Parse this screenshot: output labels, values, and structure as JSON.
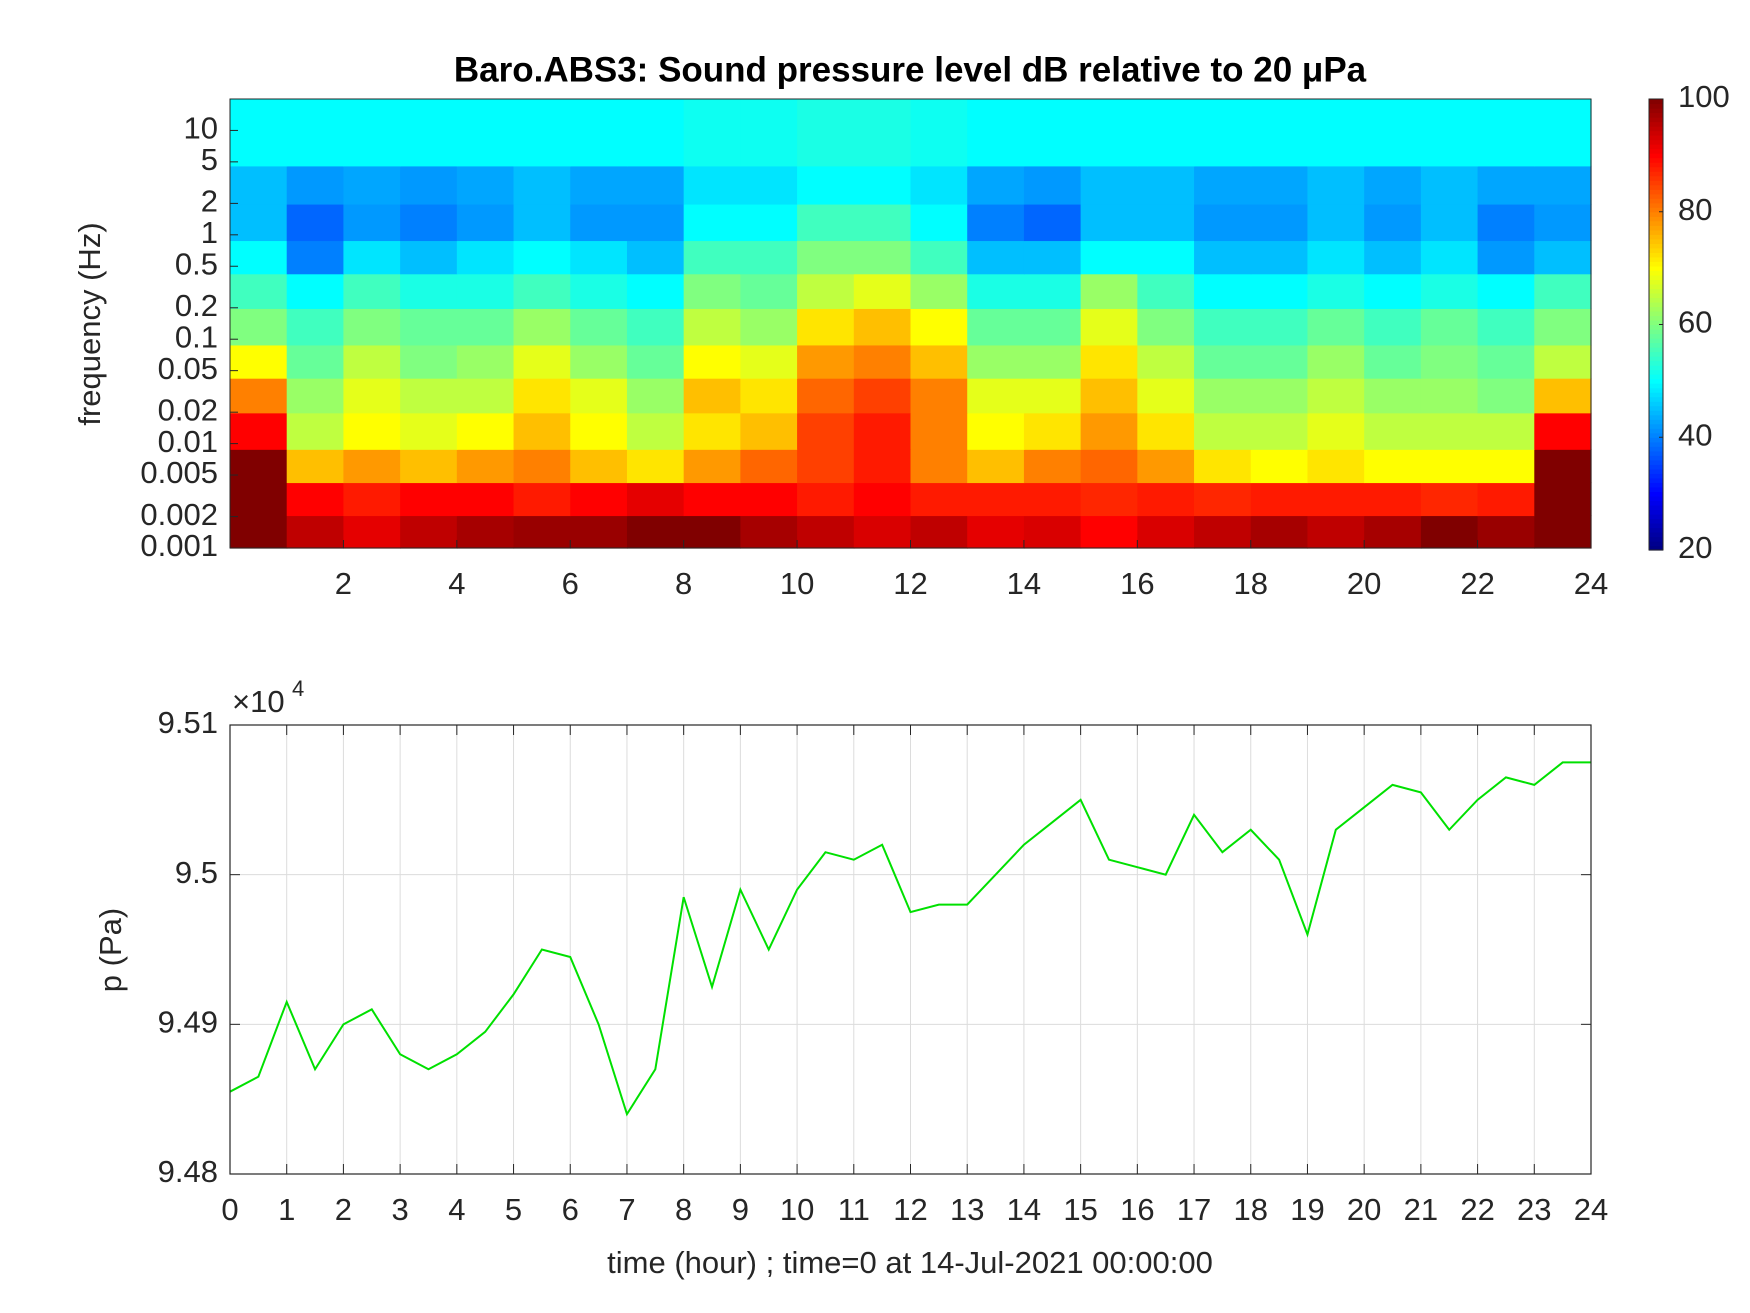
{
  "chart_data": [
    {
      "type": "heatmap",
      "title": "Baro.ABS3: Sound pressure level dB relative to 20 μPa",
      "ylabel": "frequency (Hz)",
      "colormap": "jet",
      "log_y": true,
      "xlim": [
        0,
        24
      ],
      "xticks": [
        2,
        4,
        6,
        8,
        10,
        12,
        14,
        16,
        18,
        20,
        22,
        24
      ],
      "ylim": [
        0.001,
        20
      ],
      "yticks": [
        0.001,
        0.002,
        0.005,
        0.01,
        0.02,
        0.05,
        0.1,
        0.2,
        0.5,
        1,
        2,
        5,
        10
      ],
      "clim": [
        20,
        100
      ],
      "cticks": [
        20,
        40,
        60,
        80,
        100
      ],
      "x": [
        0.5,
        1.5,
        2.5,
        3.5,
        4.5,
        5.5,
        6.5,
        7.5,
        8.5,
        9.5,
        10.5,
        11.5,
        12.5,
        13.5,
        14.5,
        15.5,
        16.5,
        17.5,
        18.5,
        19.5,
        20.5,
        21.5,
        22.5,
        23.5
      ],
      "y": [
        0.0014,
        0.003,
        0.006,
        0.013,
        0.03,
        0.06,
        0.13,
        0.3,
        0.6,
        1.3,
        3,
        7
      ],
      "z": [
        [
          100,
          95,
          92,
          95,
          97,
          98,
          98,
          100,
          100,
          97,
          95,
          93,
          95,
          92,
          93,
          90,
          93,
          95,
          97,
          95,
          97,
          100,
          98,
          100
        ],
        [
          100,
          90,
          88,
          90,
          90,
          88,
          90,
          92,
          90,
          90,
          88,
          90,
          88,
          88,
          88,
          87,
          88,
          87,
          88,
          88,
          88,
          87,
          88,
          100
        ],
        [
          100,
          75,
          78,
          75,
          78,
          80,
          75,
          72,
          78,
          82,
          85,
          88,
          80,
          75,
          80,
          82,
          78,
          72,
          70,
          72,
          70,
          70,
          70,
          100
        ],
        [
          90,
          65,
          70,
          68,
          70,
          75,
          70,
          65,
          72,
          75,
          85,
          88,
          80,
          70,
          72,
          78,
          72,
          65,
          65,
          68,
          65,
          65,
          65,
          90
        ],
        [
          80,
          62,
          68,
          65,
          65,
          72,
          68,
          62,
          75,
          72,
          82,
          85,
          80,
          68,
          68,
          75,
          68,
          62,
          62,
          65,
          62,
          62,
          60,
          75
        ],
        [
          70,
          58,
          65,
          60,
          62,
          68,
          62,
          58,
          70,
          68,
          78,
          80,
          75,
          62,
          62,
          72,
          65,
          58,
          58,
          62,
          58,
          60,
          58,
          65
        ],
        [
          60,
          55,
          60,
          58,
          58,
          62,
          58,
          55,
          65,
          62,
          72,
          75,
          70,
          58,
          58,
          68,
          60,
          55,
          55,
          58,
          55,
          58,
          55,
          60
        ],
        [
          55,
          50,
          55,
          52,
          52,
          55,
          52,
          50,
          60,
          58,
          65,
          68,
          62,
          52,
          52,
          62,
          55,
          50,
          50,
          52,
          50,
          52,
          50,
          55
        ],
        [
          50,
          40,
          48,
          45,
          48,
          50,
          48,
          45,
          55,
          55,
          60,
          60,
          55,
          45,
          45,
          50,
          50,
          45,
          45,
          48,
          45,
          48,
          42,
          45
        ],
        [
          45,
          38,
          42,
          40,
          42,
          45,
          42,
          42,
          50,
          50,
          55,
          55,
          50,
          40,
          38,
          45,
          45,
          42,
          42,
          45,
          42,
          45,
          40,
          42
        ],
        [
          45,
          42,
          43,
          42,
          43,
          45,
          43,
          43,
          48,
          48,
          50,
          50,
          48,
          43,
          42,
          45,
          45,
          43,
          43,
          45,
          43,
          45,
          43,
          43
        ],
        [
          50,
          50,
          50,
          50,
          50,
          50,
          50,
          50,
          51,
          51,
          52,
          52,
          51,
          50,
          50,
          50,
          50,
          50,
          50,
          50,
          50,
          50,
          50,
          50
        ]
      ]
    },
    {
      "type": "line",
      "xlabel": "time (hour) ; time=0 at 14-Jul-2021 00:00:00",
      "ylabel": "p (Pa)",
      "y_multiplier": "×10",
      "y_multiplier_exponent": "4",
      "grid": true,
      "color": "#00e000",
      "xlim": [
        0,
        24
      ],
      "xticks": [
        0,
        1,
        2,
        3,
        4,
        5,
        6,
        7,
        8,
        9,
        10,
        11,
        12,
        13,
        14,
        15,
        16,
        17,
        18,
        19,
        20,
        21,
        22,
        23,
        24
      ],
      "ylim": [
        94800,
        95100
      ],
      "yticks": [
        {
          "value": 94800,
          "label": "9.48"
        },
        {
          "value": 94900,
          "label": "9.49"
        },
        {
          "value": 95000,
          "label": "9.5"
        },
        {
          "value": 95100,
          "label": "9.51"
        }
      ],
      "x": [
        0,
        0.5,
        1,
        1.5,
        2,
        2.5,
        3,
        3.5,
        4,
        4.5,
        5,
        5.5,
        6,
        6.5,
        7,
        7.5,
        8,
        8.5,
        9,
        9.5,
        10,
        10.5,
        11,
        11.5,
        12,
        12.5,
        13,
        13.5,
        14,
        14.5,
        15,
        15.5,
        16,
        16.5,
        17,
        17.5,
        18,
        18.5,
        19,
        19.5,
        20,
        20.5,
        21,
        21.5,
        22,
        22.5,
        23,
        23.5,
        24
      ],
      "values": [
        94855,
        94865,
        94915,
        94870,
        94900,
        94910,
        94880,
        94870,
        94880,
        94895,
        94920,
        94950,
        94945,
        94900,
        94840,
        94870,
        94985,
        94925,
        94990,
        94950,
        94990,
        95015,
        95010,
        95020,
        94975,
        94980,
        94980,
        95000,
        95020,
        95035,
        95050,
        95010,
        95005,
        95000,
        95040,
        95015,
        95030,
        95010,
        94960,
        95030,
        95045,
        95060,
        95055,
        95030,
        95050,
        95065,
        95060,
        95075,
        95075
      ]
    }
  ]
}
